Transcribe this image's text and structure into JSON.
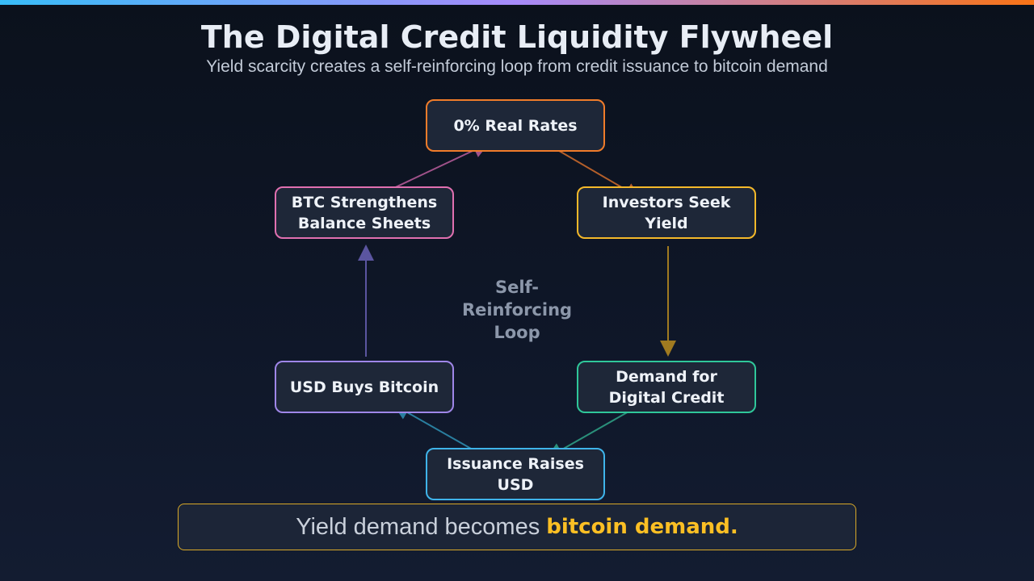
{
  "header": {
    "title": "The Digital Credit Liquidity Flywheel",
    "subtitle": "Yield scarcity creates a self-reinforcing loop from credit issuance to bitcoin demand"
  },
  "nodes": [
    {
      "label": "0% Real Rates",
      "color": "#f07c2a"
    },
    {
      "label": "Investors Seek Yield",
      "color": "#f4b82a"
    },
    {
      "label": "Demand for Digital Credit",
      "color": "#2fc79a"
    },
    {
      "label": "Issuance Raises USD",
      "color": "#3fb4ea"
    },
    {
      "label": "USD Buys Bitcoin",
      "color": "#9f86e8"
    },
    {
      "label": "BTC Strengthens Balance Sheets",
      "color": "#e070b0"
    }
  ],
  "center_label": "Self-Reinforcing Loop",
  "footer": {
    "text": "Yield demand becomes",
    "highlight": "bitcoin demand."
  }
}
